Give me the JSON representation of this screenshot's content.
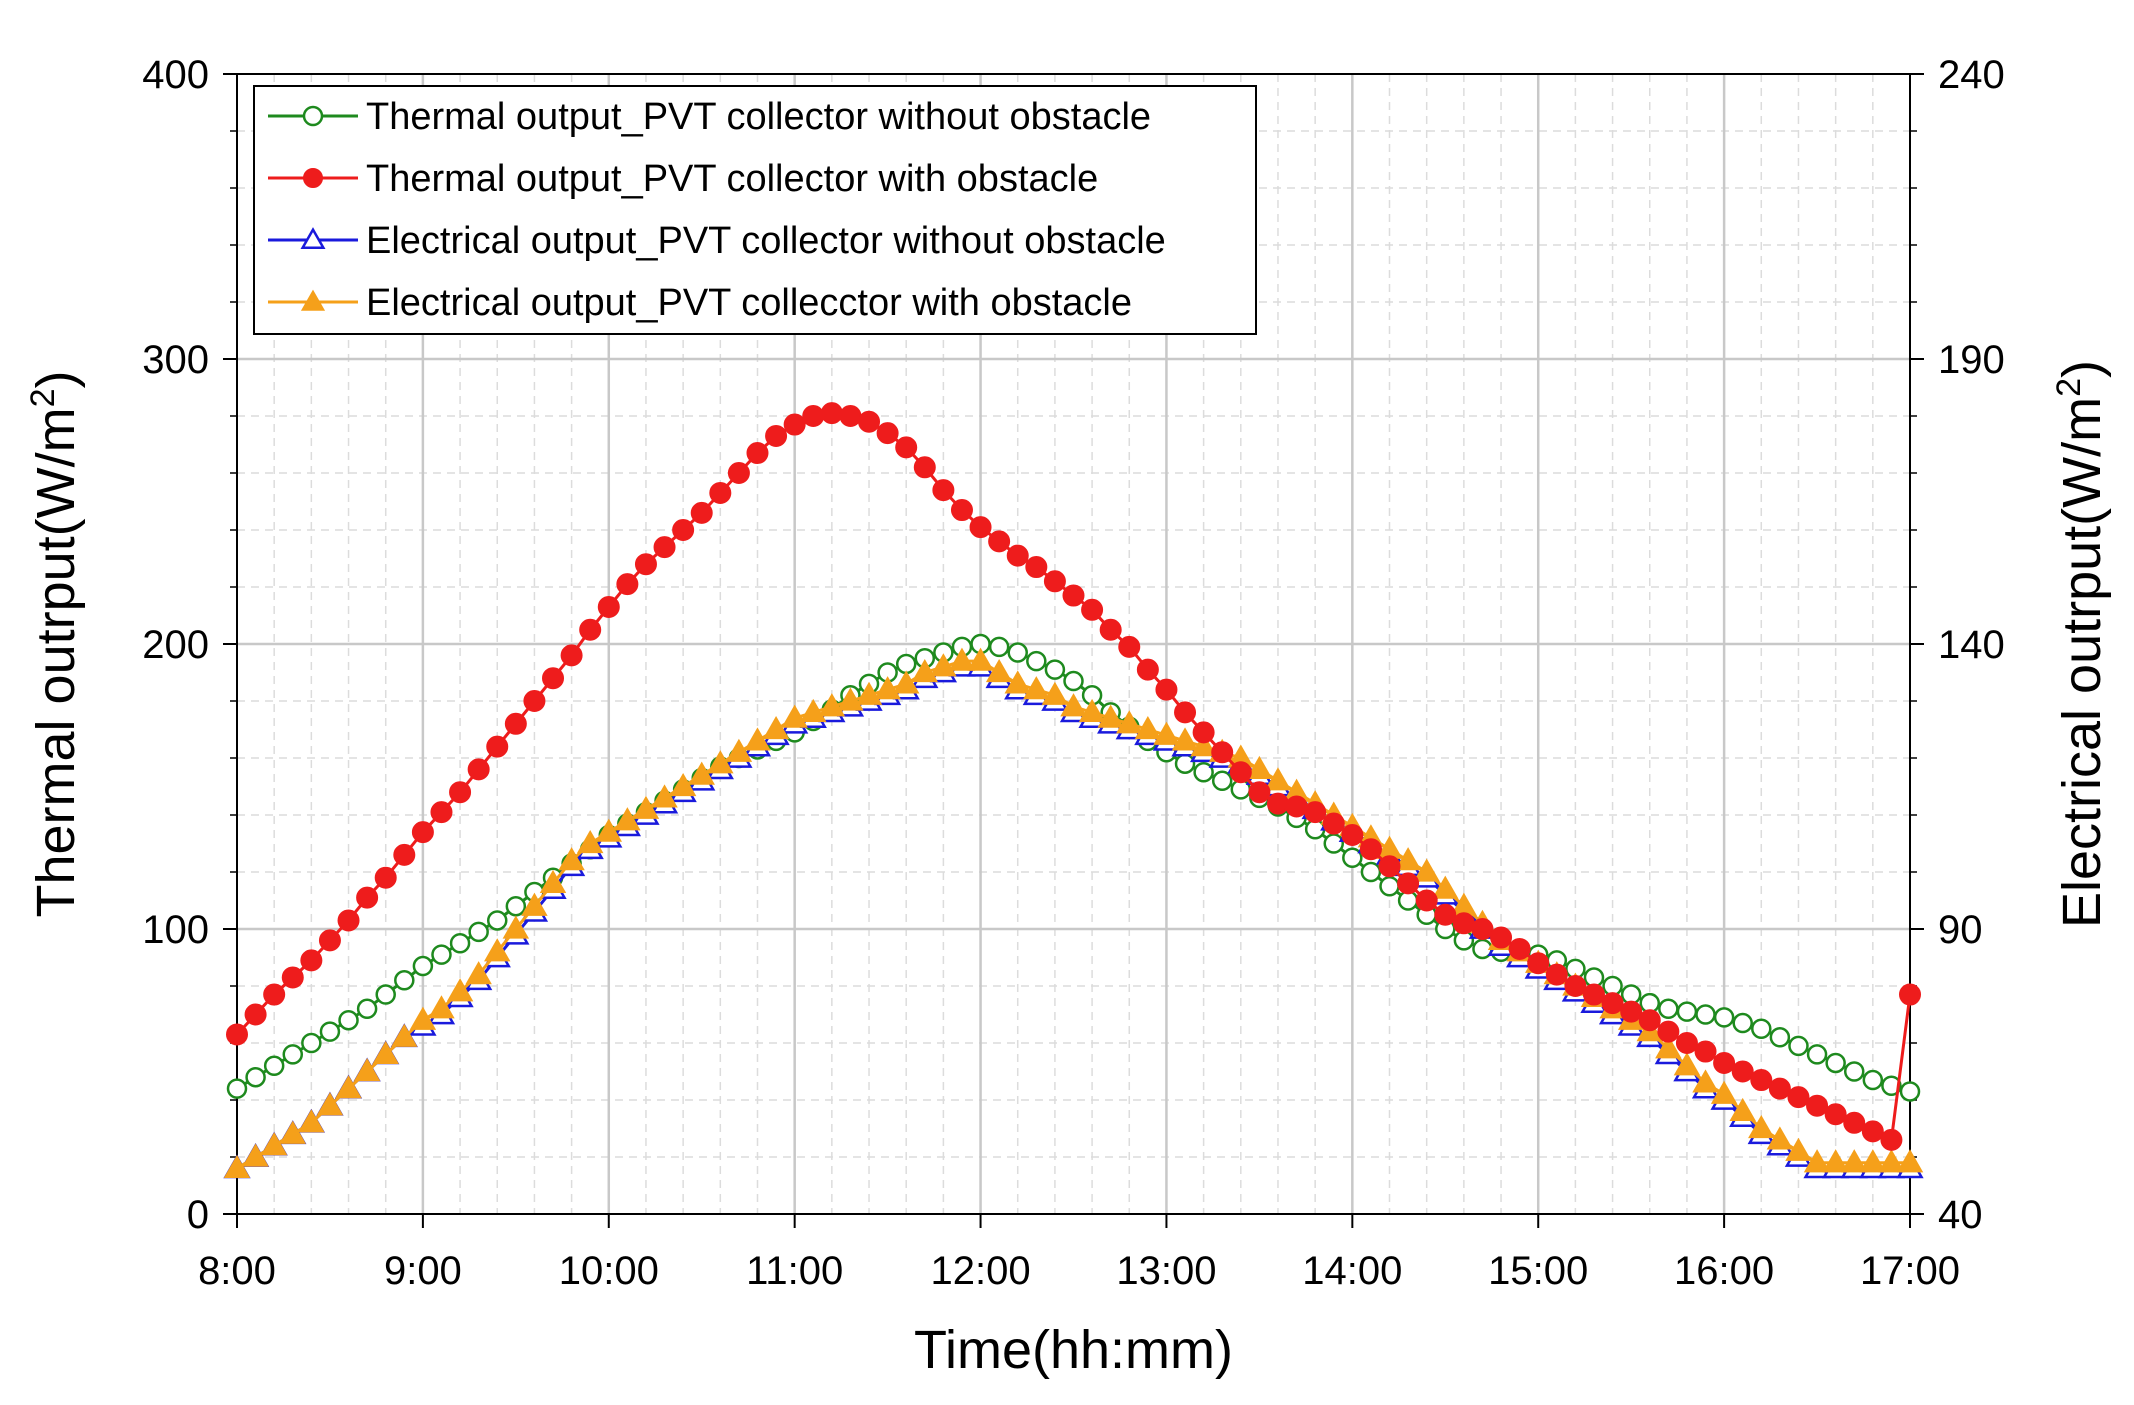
{
  "chart_data": {
    "type": "line",
    "x": [
      "8:00",
      "8:06",
      "8:12",
      "8:18",
      "8:24",
      "8:30",
      "8:36",
      "8:42",
      "8:48",
      "8:54",
      "9:00",
      "9:06",
      "9:12",
      "9:18",
      "9:24",
      "9:30",
      "9:36",
      "9:42",
      "9:48",
      "9:54",
      "10:00",
      "10:06",
      "10:12",
      "10:18",
      "10:24",
      "10:30",
      "10:36",
      "10:42",
      "10:48",
      "10:54",
      "11:00",
      "11:06",
      "11:12",
      "11:18",
      "11:24",
      "11:30",
      "11:36",
      "11:42",
      "11:48",
      "11:54",
      "12:00",
      "12:06",
      "12:12",
      "12:18",
      "12:24",
      "12:30",
      "12:36",
      "12:42",
      "12:48",
      "12:54",
      "13:00",
      "13:06",
      "13:12",
      "13:18",
      "13:24",
      "13:30",
      "13:36",
      "13:42",
      "13:48",
      "13:54",
      "14:00",
      "14:06",
      "14:12",
      "14:18",
      "14:24",
      "14:30",
      "14:36",
      "14:42",
      "14:48",
      "14:54",
      "15:00",
      "15:06",
      "15:12",
      "15:18",
      "15:24",
      "15:30",
      "15:36",
      "15:42",
      "15:48",
      "15:54",
      "16:00",
      "16:06",
      "16:12",
      "16:18",
      "16:24",
      "16:30",
      "16:36",
      "16:42",
      "16:48",
      "16:54",
      "17:00"
    ],
    "xticks": [
      "8:00",
      "9:00",
      "10:00",
      "11:00",
      "12:00",
      "13:00",
      "14:00",
      "15:00",
      "16:00",
      "17:00"
    ],
    "xlabel": "Time(hh:mm)",
    "ylabel": "Thermal outrput(W/m",
    "ylabel_sup": "2",
    "ylabel_close": ")",
    "y2label": "Electrical outrput(W/m",
    "y2label_sup": "2",
    "y2label_close": ")",
    "ylim": [
      0,
      400
    ],
    "yticks": [
      0,
      100,
      200,
      300,
      400
    ],
    "y2lim": [
      40,
      240
    ],
    "y2ticks": [
      40,
      90,
      140,
      190,
      240
    ],
    "grid": true,
    "legend_position": "top-left",
    "series": [
      {
        "name": "Thermal output_PVT collector without obstacle",
        "axis": "left",
        "color": "#1e8a1e",
        "marker": "circle-open",
        "values": [
          44,
          48,
          52,
          56,
          60,
          64,
          68,
          72,
          77,
          82,
          87,
          91,
          95,
          99,
          103,
          108,
          113,
          118,
          123,
          128,
          133,
          137,
          141,
          145,
          149,
          153,
          157,
          160,
          163,
          166,
          169,
          173,
          177,
          182,
          186,
          190,
          193,
          195,
          197,
          199,
          200,
          199,
          197,
          194,
          191,
          187,
          182,
          176,
          171,
          166,
          162,
          158,
          155,
          152,
          149,
          146,
          143,
          139,
          135,
          130,
          125,
          120,
          115,
          110,
          105,
          100,
          96,
          93,
          92,
          92,
          91,
          89,
          86,
          83,
          80,
          77,
          74,
          72,
          71,
          70,
          69,
          67,
          65,
          62,
          59,
          56,
          53,
          50,
          47,
          45,
          43
        ]
      },
      {
        "name": "Thermal output_PVT collector with obstacle",
        "axis": "left",
        "color": "#ee1c1c",
        "marker": "circle-filled",
        "values": [
          63,
          70,
          77,
          83,
          89,
          96,
          103,
          111,
          118,
          126,
          134,
          141,
          148,
          156,
          164,
          172,
          180,
          188,
          196,
          205,
          213,
          221,
          228,
          234,
          240,
          246,
          253,
          260,
          267,
          273,
          277,
          280,
          281,
          280,
          278,
          274,
          269,
          262,
          254,
          247,
          241,
          236,
          231,
          227,
          222,
          217,
          212,
          205,
          199,
          191,
          184,
          176,
          169,
          162,
          155,
          148,
          144,
          143,
          141,
          137,
          133,
          128,
          122,
          116,
          110,
          105,
          102,
          100,
          97,
          93,
          88,
          84,
          80,
          77,
          74,
          71,
          68,
          64,
          60,
          57,
          53,
          50,
          47,
          44,
          41,
          38,
          35,
          32,
          29,
          26,
          77
        ]
      },
      {
        "name": "Electrical output_PVT collector without obstacle",
        "axis": "right",
        "color": "#1a1adc",
        "marker": "triangle-open",
        "values": [
          48,
          50,
          52,
          54,
          56,
          59,
          62,
          65,
          68,
          71,
          73,
          75,
          78,
          81,
          85,
          89,
          93,
          97,
          101,
          104,
          106,
          108,
          110,
          112,
          114,
          116,
          118,
          120,
          122,
          124,
          126,
          127,
          128,
          129,
          130,
          131,
          132,
          134,
          135,
          136,
          136,
          134,
          132,
          131,
          130,
          128,
          127,
          126,
          125,
          124,
          123,
          122,
          121,
          120,
          119,
          117,
          115,
          113,
          111,
          109,
          107,
          105,
          103,
          101,
          99,
          96,
          93,
          90,
          87,
          85,
          83,
          81,
          79,
          77,
          75,
          73,
          71,
          68,
          65,
          62,
          60,
          57,
          54,
          52,
          50,
          48,
          48,
          48,
          48,
          48,
          48
        ]
      },
      {
        "name": "Electrical output_PVT collecctor with obstacle",
        "axis": "right",
        "color": "#f5a01a",
        "marker": "triangle-filled",
        "values": [
          48,
          50,
          52,
          54,
          56,
          59,
          62,
          65,
          68,
          71,
          74,
          76,
          79,
          82,
          86,
          90,
          94,
          98,
          102,
          105,
          107,
          109,
          111,
          113,
          115,
          117,
          119,
          121,
          123,
          125,
          127,
          128,
          129,
          130,
          131,
          132,
          133,
          135,
          136,
          137,
          137,
          135,
          133,
          132,
          131,
          129,
          128,
          127,
          126,
          125,
          124,
          123,
          122,
          121,
          120,
          118,
          116,
          114,
          112,
          110,
          108,
          106,
          104,
          102,
          100,
          97,
          94,
          91,
          88,
          86,
          84,
          82,
          80,
          78,
          76,
          74,
          72,
          69,
          66,
          63,
          61,
          58,
          55,
          53,
          51,
          49,
          49,
          49,
          49,
          49,
          49
        ]
      }
    ]
  }
}
